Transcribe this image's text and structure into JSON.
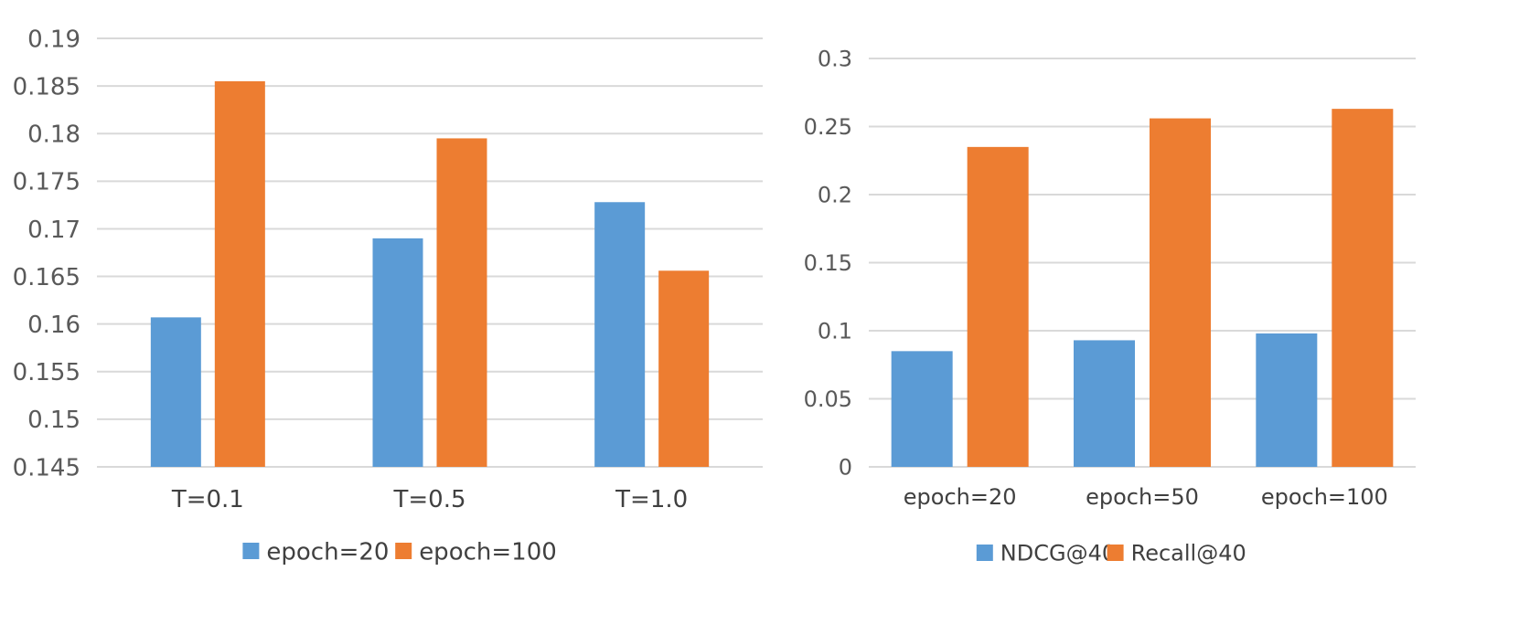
{
  "colors": {
    "blue": "#5b9bd5",
    "orange": "#ed7d31",
    "grid": "#d9d9d9",
    "text": "#595959"
  },
  "chart_data": [
    {
      "type": "bar",
      "title": "",
      "xlabel": "",
      "ylabel": "",
      "categories": [
        "T=0.1",
        "T=0.5",
        "T=1.0"
      ],
      "series": [
        {
          "name": "epoch=20",
          "color": "#5b9bd5",
          "values": [
            0.1607,
            0.169,
            0.1728
          ]
        },
        {
          "name": "epoch=100",
          "color": "#ed7d31",
          "values": [
            0.1855,
            0.1795,
            0.1656
          ]
        }
      ],
      "ylim": [
        0.145,
        0.19
      ],
      "yticks": [
        "0.145",
        "0.15",
        "0.155",
        "0.16",
        "0.165",
        "0.17",
        "0.175",
        "0.18",
        "0.185",
        "0.19"
      ],
      "grid": true,
      "legend": "bottom"
    },
    {
      "type": "bar",
      "title": "",
      "xlabel": "",
      "ylabel": "",
      "categories": [
        "epoch=20",
        "epoch=50",
        "epoch=100"
      ],
      "series": [
        {
          "name": "NDCG@40",
          "color": "#5b9bd5",
          "values": [
            0.085,
            0.093,
            0.098
          ]
        },
        {
          "name": "Recall@40",
          "color": "#ed7d31",
          "values": [
            0.235,
            0.256,
            0.263
          ]
        }
      ],
      "ylim": [
        0,
        0.3
      ],
      "yticks": [
        "0",
        "0.05",
        "0.1",
        "0.15",
        "0.2",
        "0.25",
        "0.3"
      ],
      "grid": true,
      "legend": "bottom"
    }
  ]
}
